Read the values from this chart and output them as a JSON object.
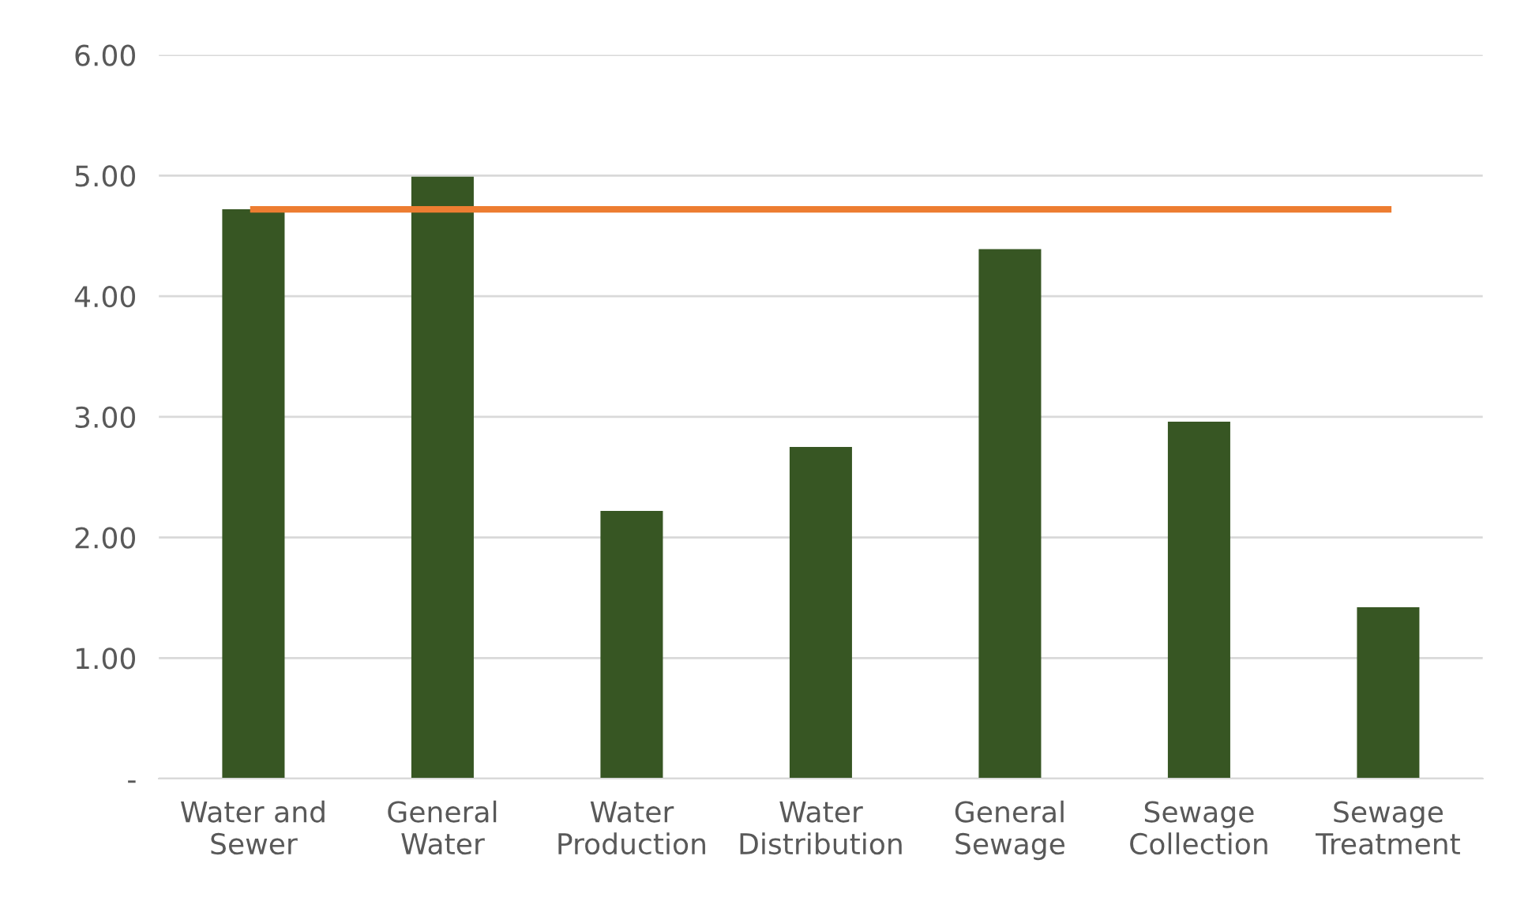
{
  "chart_data": {
    "type": "bar",
    "categories": [
      "Water and\nSewer",
      "General\nWater",
      "Water\nProduction",
      "Water\nDistribution",
      "General\nSewage",
      "Sewage\nCollection",
      "Sewage\nTreatment"
    ],
    "series": [
      {
        "color": "#375623",
        "values": [
          4.72,
          4.99,
          2.22,
          2.75,
          4.39,
          2.96,
          1.42
        ]
      },
      {
        "type": "line",
        "color": "#ed7d31",
        "values": [
          4.72,
          4.72,
          4.72,
          4.72,
          4.72,
          4.72,
          4.72
        ]
      }
    ],
    "ylim": [
      0,
      6
    ],
    "yticks": [
      {
        "value": 0,
        "label": "-"
      },
      {
        "value": 1,
        "label": "1.00"
      },
      {
        "value": 2,
        "label": "2.00"
      },
      {
        "value": 3,
        "label": "3.00"
      },
      {
        "value": 4,
        "label": "4.00"
      },
      {
        "value": 5,
        "label": "5.00"
      },
      {
        "value": 6,
        "label": "6.00"
      }
    ],
    "grid": "y",
    "marker": "none",
    "line_style": "solid"
  }
}
